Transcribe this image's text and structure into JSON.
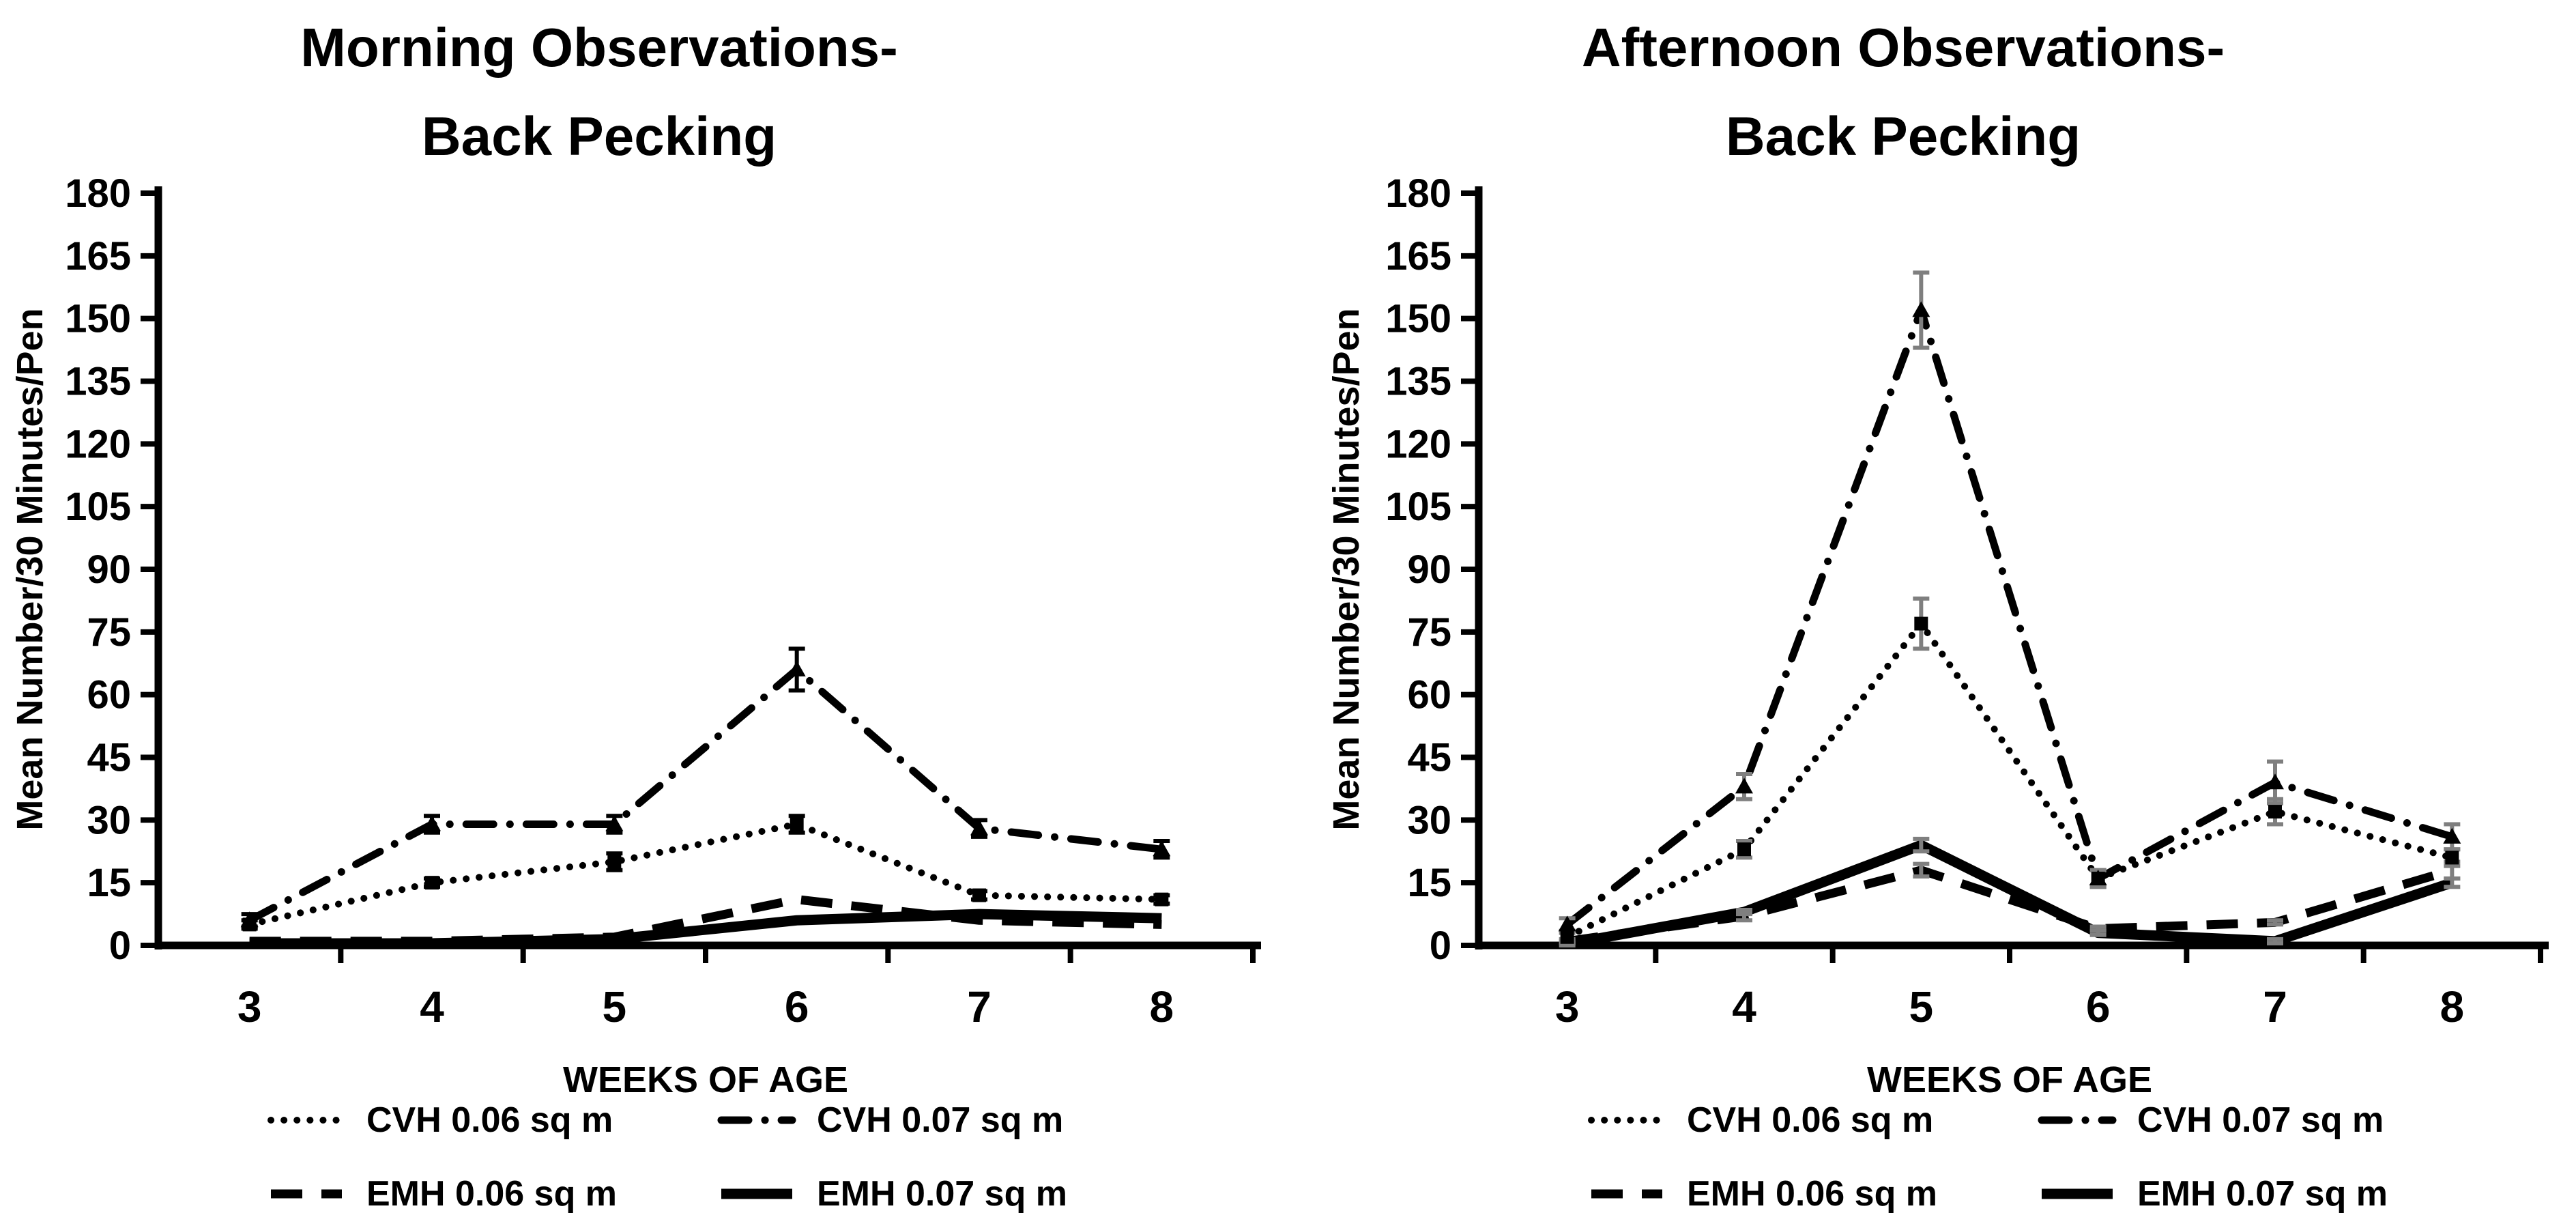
{
  "figure": {
    "background": "#ffffff",
    "ink_color": "#000000"
  },
  "chart_data": [
    {
      "type": "line",
      "id": "morning-back-pecking",
      "title_line1": "Morning Observations-",
      "title_line2": "Back Pecking",
      "ylabel": "Mean Number/30 Minutes/Pen",
      "xlabel": "WEEKS OF AGE",
      "ylim": [
        0,
        180
      ],
      "ytick_step": 15,
      "ytick_labels": [
        "0",
        "15",
        "30",
        "45",
        "60",
        "75",
        "90",
        "105",
        "120",
        "135",
        "150",
        "165",
        "180"
      ],
      "weeks": [
        3,
        4,
        5,
        6,
        7,
        8
      ],
      "grid": "off",
      "legend_position": "bottom",
      "error_bar_color": "#000000",
      "series": [
        {
          "label": "CVH  0.06 sq m",
          "style": "dotted",
          "marker": "square",
          "values": [
            5,
            15,
            20,
            29,
            12,
            11
          ],
          "errors": [
            1,
            1,
            2,
            2,
            1,
            1
          ]
        },
        {
          "label": "CVH  0.07 sq m",
          "style": "dashdot",
          "marker": "triangle",
          "values": [
            6,
            29,
            29,
            66,
            28,
            23
          ],
          "errors": [
            1.5,
            2,
            2,
            5,
            2,
            2
          ]
        },
        {
          "label": "EMH  0.06 sq m",
          "style": "dashed",
          "marker": "none",
          "values": [
            1,
            1,
            2,
            11,
            6,
            5
          ],
          "errors": [
            0,
            0,
            0,
            0,
            0,
            0
          ]
        },
        {
          "label": "EMH  0.07 sq m",
          "style": "solid",
          "marker": "none",
          "values": [
            0.5,
            0.5,
            1.5,
            6,
            7.5,
            6.5
          ],
          "errors": [
            0,
            0,
            0,
            0,
            0,
            0
          ]
        }
      ]
    },
    {
      "type": "line",
      "id": "afternoon-back-pecking",
      "title_line1": "Afternoon Observations-",
      "title_line2": "Back Pecking",
      "ylabel": "Mean Number/30 Minutes/Pen",
      "xlabel": "WEEKS OF AGE",
      "ylim": [
        0,
        180
      ],
      "ytick_step": 15,
      "ytick_labels": [
        "0",
        "15",
        "30",
        "45",
        "60",
        "75",
        "90",
        "105",
        "120",
        "135",
        "150",
        "165",
        "180"
      ],
      "weeks": [
        3,
        4,
        5,
        6,
        7,
        8
      ],
      "grid": "off",
      "legend_position": "bottom",
      "error_bar_color": "#7f7f7f",
      "series": [
        {
          "label": "CVH  0.06 sq m",
          "style": "dotted",
          "marker": "square",
          "values": [
            2,
            23,
            77,
            16,
            32,
            21
          ],
          "errors": [
            1,
            2,
            6,
            2,
            3,
            2
          ]
        },
        {
          "label": "CVH  0.07 sq m",
          "style": "dashdot",
          "marker": "triangle",
          "values": [
            5,
            38,
            152,
            16,
            39,
            26
          ],
          "errors": [
            1.5,
            3,
            9,
            2,
            5,
            3
          ]
        },
        {
          "label": "EMH  0.06 sq m",
          "style": "dashed",
          "marker": "none",
          "values": [
            1,
            7,
            18,
            4,
            5.5,
            18
          ],
          "errors": [
            0.5,
            1,
            1.5,
            0.5,
            0.5,
            2
          ]
        },
        {
          "label": "EMH  0.07 sq m",
          "style": "solid",
          "marker": "none",
          "values": [
            0.3,
            8,
            24,
            3,
            1,
            15
          ],
          "errors": [
            0.3,
            0.5,
            1.5,
            0.5,
            0.5,
            1
          ]
        }
      ]
    }
  ]
}
